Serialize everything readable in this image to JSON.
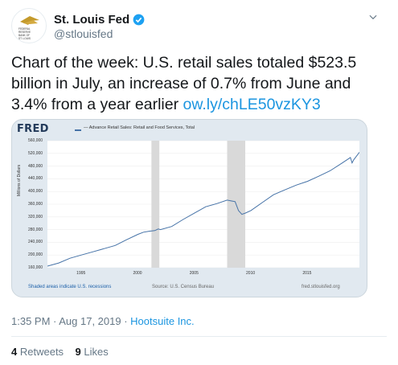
{
  "account": {
    "display_name": "St. Louis Fed",
    "handle": "@stlouisfed",
    "verified": true,
    "avatar_icon": "eagle-logo-icon",
    "avatar_lines": [
      "FEDERAL",
      "RESERVE",
      "BANK OF",
      "ST. LOUIS"
    ]
  },
  "tweet": {
    "text": "Chart of the week: U.S. retail sales totaled $523.5 billion in July, an increase of 0.7% from June and 3.4% from a year earlier ",
    "link": "ow.ly/chLE50vzKY3",
    "time": "1:35 PM · Aug 17, 2019 · ",
    "source": "Hootsuite Inc."
  },
  "stats": {
    "retweets_count": "4",
    "retweets_label": "Retweets",
    "likes_count": "9",
    "likes_label": "Likes"
  },
  "chart_data": {
    "type": "line",
    "logo": "FRED",
    "title": "— Advance Retail Sales: Retail and Food Services, Total",
    "ylabel": "Millions of Dollars",
    "ylim": [
      160000,
      560000
    ],
    "yticks": [
      "560,000",
      "520,000",
      "480,000",
      "440,000",
      "400,000",
      "360,000",
      "320,000",
      "280,000",
      "240,000",
      "200,000",
      "160,000"
    ],
    "xlim": [
      1992,
      2019.6
    ],
    "xticks": [
      "1995",
      "2000",
      "2005",
      "2010",
      "2015"
    ],
    "recessions": [
      [
        2001.2,
        2001.9
      ],
      [
        2007.9,
        2009.5
      ]
    ],
    "series": [
      {
        "values": [
          [
            1992,
            165000
          ],
          [
            1993,
            175000
          ],
          [
            1994,
            190000
          ],
          [
            1995,
            200000
          ],
          [
            1996,
            210000
          ],
          [
            1997,
            220000
          ],
          [
            1998,
            230000
          ],
          [
            1999,
            248000
          ],
          [
            2000,
            265000
          ],
          [
            2000.5,
            272000
          ],
          [
            2001,
            275000
          ],
          [
            2001.5,
            277000
          ],
          [
            2001.8,
            282000
          ],
          [
            2002,
            280000
          ],
          [
            2003,
            290000
          ],
          [
            2004,
            312000
          ],
          [
            2005,
            332000
          ],
          [
            2006,
            352000
          ],
          [
            2007,
            362000
          ],
          [
            2007.9,
            373000
          ],
          [
            2008.3,
            370000
          ],
          [
            2008.6,
            368000
          ],
          [
            2008.9,
            340000
          ],
          [
            2009.2,
            328000
          ],
          [
            2009.5,
            332000
          ],
          [
            2010,
            340000
          ],
          [
            2011,
            365000
          ],
          [
            2012,
            390000
          ],
          [
            2013,
            405000
          ],
          [
            2014,
            420000
          ],
          [
            2015,
            432000
          ],
          [
            2016,
            448000
          ],
          [
            2017,
            465000
          ],
          [
            2018,
            488000
          ],
          [
            2018.8,
            507000
          ],
          [
            2018.95,
            490000
          ],
          [
            2019.1,
            500000
          ],
          [
            2019.6,
            523500
          ]
        ]
      }
    ],
    "footer_left": "Shaded areas indicate U.S. recessions",
    "footer_mid": "Source: U.S. Census Bureau",
    "footer_right": "fred.stlouisfed.org",
    "colors": {
      "line": "#4572a7",
      "recession": "#d9d9d9",
      "background": "#e1e9f0"
    }
  }
}
